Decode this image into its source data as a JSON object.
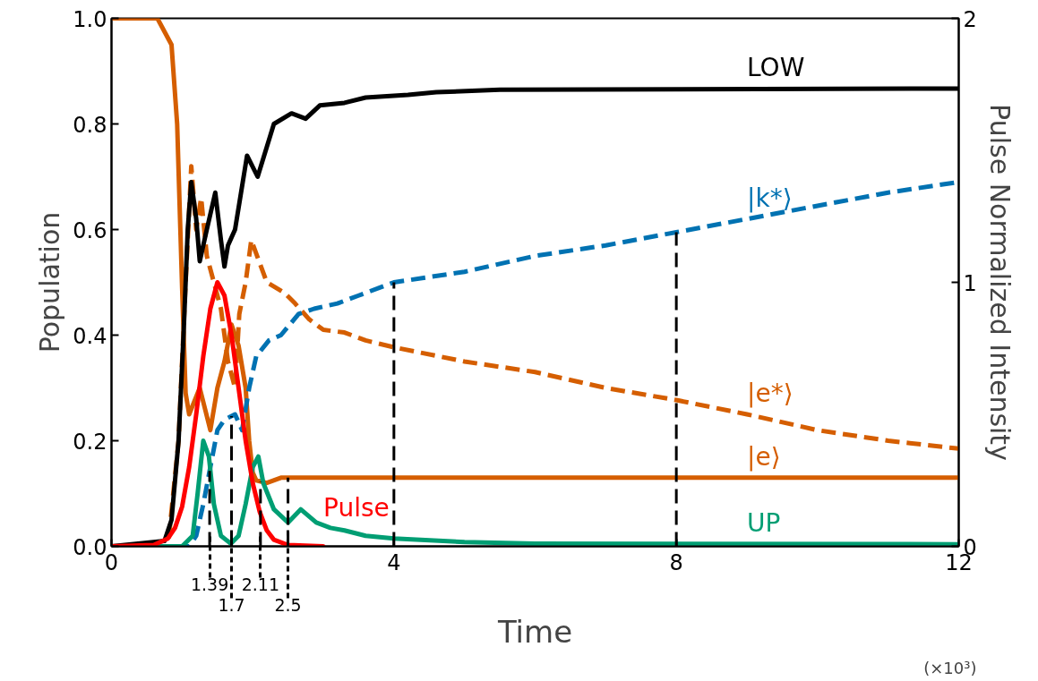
{
  "chart_data": {
    "type": "line",
    "xlabel": "Time",
    "ylabel": "Population",
    "y2label": "Pulse Normalized Intensity",
    "xlim": [
      0,
      12
    ],
    "xticks": [
      0,
      4,
      8,
      12
    ],
    "ylim": [
      0,
      1.0
    ],
    "yticks": [
      {
        "value": 0,
        "label": "0.0"
      },
      0.2,
      0.4,
      0.6,
      0.8,
      {
        "value": 1,
        "label": "1.0"
      }
    ],
    "y2lim": [
      0,
      2
    ],
    "y2ticks": [
      0,
      1,
      2
    ],
    "grid": false,
    "line_style": "solid",
    "marker": "none",
    "series": [
      {
        "name": "|e⟩",
        "color": "#d55e00",
        "x": [
          0,
          0.65,
          0.85,
          0.93,
          1.0,
          1.05,
          1.1,
          1.25,
          1.4,
          1.5,
          1.6,
          1.7,
          1.8,
          1.9,
          1.95,
          2.0,
          2.05,
          2.2,
          2.4,
          12
        ],
        "values": [
          1.0,
          1.0,
          0.95,
          0.8,
          0.49,
          0.29,
          0.25,
          0.3,
          0.22,
          0.3,
          0.35,
          0.42,
          0.38,
          0.3,
          0.2,
          0.14,
          0.125,
          0.12,
          0.13,
          0.13
        ]
      },
      {
        "name": "|e*⟩",
        "color": "#d55e00",
        "line_style": "dashed",
        "x": [
          0,
          0.8,
          0.95,
          1.05,
          1.13,
          1.2,
          1.27,
          1.35,
          1.45,
          1.55,
          1.65,
          1.75,
          1.81,
          1.9,
          1.98,
          2.2,
          2.45,
          2.6,
          2.8,
          3.0,
          3.3,
          3.6,
          4,
          5,
          6,
          7,
          8,
          9,
          10,
          11,
          12
        ],
        "values": [
          0,
          0,
          0.2,
          0.5,
          0.72,
          0.6,
          0.66,
          0.55,
          0.5,
          0.45,
          0.35,
          0.3,
          0.44,
          0.5,
          0.58,
          0.5,
          0.48,
          0.46,
          0.43,
          0.41,
          0.405,
          0.39,
          0.377,
          0.35,
          0.33,
          0.3,
          0.277,
          0.25,
          0.22,
          0.2,
          0.185
        ]
      },
      {
        "name": "LOW",
        "color": "#000000",
        "x": [
          0,
          0.75,
          0.85,
          0.95,
          1.02,
          1.08,
          1.13,
          1.2,
          1.25,
          1.35,
          1.47,
          1.55,
          1.6,
          1.65,
          1.75,
          1.92,
          2.07,
          2.3,
          2.55,
          2.75,
          2.95,
          3.3,
          3.6,
          4.2,
          4.6,
          5.5,
          12
        ],
        "values": [
          0,
          0.01,
          0.05,
          0.2,
          0.4,
          0.6,
          0.69,
          0.62,
          0.54,
          0.6,
          0.67,
          0.58,
          0.53,
          0.57,
          0.6,
          0.74,
          0.7,
          0.8,
          0.82,
          0.81,
          0.835,
          0.84,
          0.85,
          0.855,
          0.86,
          0.865,
          0.867
        ]
      },
      {
        "name": "|k*⟩",
        "color": "#0072b2",
        "line_style": "dashed",
        "x": [
          0,
          1.1,
          1.2,
          1.3,
          1.4,
          1.5,
          1.6,
          1.75,
          1.85,
          1.95,
          2.05,
          2.23,
          2.4,
          2.65,
          2.87,
          3.2,
          3.5,
          4,
          5,
          6,
          7,
          8,
          9,
          10,
          11,
          12
        ],
        "values": [
          0,
          0,
          0.02,
          0.08,
          0.15,
          0.22,
          0.24,
          0.25,
          0.22,
          0.3,
          0.36,
          0.39,
          0.4,
          0.44,
          0.45,
          0.46,
          0.475,
          0.5,
          0.52,
          0.55,
          0.57,
          0.595,
          0.62,
          0.645,
          0.67,
          0.69
        ]
      },
      {
        "name": "UP",
        "color": "#009e73",
        "x": [
          0,
          1.0,
          1.15,
          1.22,
          1.3,
          1.38,
          1.45,
          1.55,
          1.69,
          1.8,
          1.9,
          2.0,
          2.08,
          2.15,
          2.3,
          2.5,
          2.68,
          2.9,
          3.1,
          3.3,
          3.6,
          4,
          5,
          6,
          12
        ],
        "values": [
          0,
          0,
          0.02,
          0.1,
          0.2,
          0.17,
          0.08,
          0.02,
          0.005,
          0.02,
          0.08,
          0.15,
          0.17,
          0.12,
          0.07,
          0.045,
          0.07,
          0.045,
          0.035,
          0.03,
          0.02,
          0.015,
          0.008,
          0.005,
          0.004
        ]
      },
      {
        "name": "Pulse",
        "color": "#ff0000",
        "axis": "y2",
        "x": [
          0,
          0.6,
          0.8,
          0.9,
          1.0,
          1.1,
          1.2,
          1.3,
          1.4,
          1.5,
          1.6,
          1.7,
          1.8,
          1.9,
          2.0,
          2.1,
          2.2,
          2.3,
          2.5,
          3.0
        ],
        "values": [
          0,
          0.005,
          0.03,
          0.07,
          0.15,
          0.3,
          0.5,
          0.72,
          0.9,
          1.0,
          0.95,
          0.8,
          0.6,
          0.4,
          0.24,
          0.13,
          0.06,
          0.025,
          0.005,
          0
        ]
      }
    ],
    "ref_lines": [
      {
        "axis": "x",
        "value": 1.39,
        "label": "1.39",
        "color": "#000000",
        "line_style": "dashed"
      },
      {
        "axis": "x",
        "value": 1.7,
        "label": "1.7",
        "color": "#000000",
        "line_style": "dashed"
      },
      {
        "axis": "x",
        "value": 2.11,
        "label": "2.11",
        "color": "#000000",
        "line_style": "dashed"
      },
      {
        "axis": "x",
        "value": 2.5,
        "label": "2.5",
        "color": "#000000",
        "line_style": "dashed"
      },
      {
        "axis": "x",
        "value": 4,
        "color": "#000000",
        "line_style": "dashed"
      },
      {
        "axis": "x",
        "value": 8,
        "color": "#000000",
        "line_style": "dashed"
      }
    ],
    "annotations": [
      "(×10³)"
    ]
  }
}
